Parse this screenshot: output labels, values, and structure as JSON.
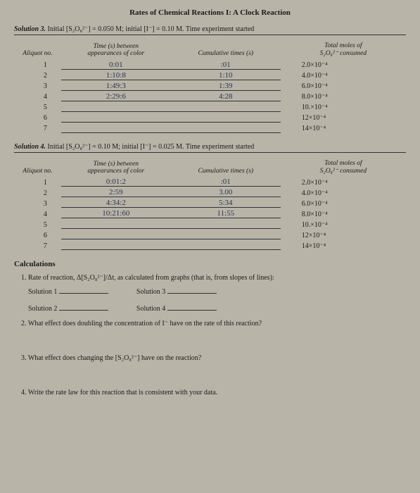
{
  "title": "Rates of Chemical Reactions I: A Clock Reaction",
  "sol3": {
    "label": "Solution 3.",
    "cond": "Initial [S₂O₈²⁻] = 0.050 M; initial [I⁻] = 0.10 M. Time experiment started",
    "headers": {
      "aliquot": "Aliquot no.",
      "time": "Time (s) between\nappearances of color",
      "cum": "Cumulative times (s)",
      "moles": "Total moles of\nS₂O₈²⁻ consumed"
    },
    "rows": [
      {
        "n": "1",
        "time": "0:01",
        "cum": ":01",
        "moles": "2.0×10⁻⁴"
      },
      {
        "n": "2",
        "time": "1:10:8",
        "cum": "1:10",
        "moles": "4.0×10⁻⁴"
      },
      {
        "n": "3",
        "time": "1:49:3",
        "cum": "1:39",
        "moles": "6.0×10⁻⁴"
      },
      {
        "n": "4",
        "time": "2:29:6",
        "cum": "4:28",
        "moles": "8.0×10⁻⁴"
      },
      {
        "n": "5",
        "time": "",
        "cum": "",
        "moles": "10.×10⁻⁴"
      },
      {
        "n": "6",
        "time": "",
        "cum": "",
        "moles": "12×10⁻⁴"
      },
      {
        "n": "7",
        "time": "",
        "cum": "",
        "moles": "14×10⁻⁴"
      }
    ]
  },
  "sol4": {
    "label": "Solution 4.",
    "cond": "Initial [S₂O₈²⁻] = 0.10 M; initial [I⁻] = 0.025 M. Time experiment started",
    "rows": [
      {
        "n": "1",
        "time": "0:01:2",
        "cum": ":01",
        "moles": "2.0×10⁻⁴"
      },
      {
        "n": "2",
        "time": "2:59",
        "cum": "3.00",
        "moles": "4.0×10⁻⁴"
      },
      {
        "n": "3",
        "time": "4:34:2",
        "cum": "5:34",
        "moles": "6.0×10⁻⁴"
      },
      {
        "n": "4",
        "time": "10:21:60",
        "cum": "11:55",
        "moles": "8.0×10⁻⁴"
      },
      {
        "n": "5",
        "time": "",
        "cum": "",
        "moles": "10.×10⁻⁴"
      },
      {
        "n": "6",
        "time": "",
        "cum": "",
        "moles": "12×10⁻⁴"
      },
      {
        "n": "7",
        "time": "",
        "cum": "",
        "moles": "14×10⁻⁴"
      }
    ]
  },
  "calc": {
    "title": "Calculations",
    "q1": "1. Rate of reaction, Δ[S₂O₈²⁻]/Δt, as calculated from graphs (that is, from slopes of lines):",
    "s1": "Solution 1",
    "s2": "Solution 2",
    "s3": "Solution 3",
    "s4": "Solution 4",
    "q2": "2. What effect does doubling the concentration of I⁻ have on the rate of this reaction?",
    "q3": "3. What effect does changing the [S₂O₈²⁻] have on the reaction?",
    "q4": "4. Write the rate law for this reaction that is consistent with your data."
  },
  "colors": {
    "bg": "#b8b4a8",
    "text": "#1a1a1a",
    "handwriting": "#2a3550"
  }
}
